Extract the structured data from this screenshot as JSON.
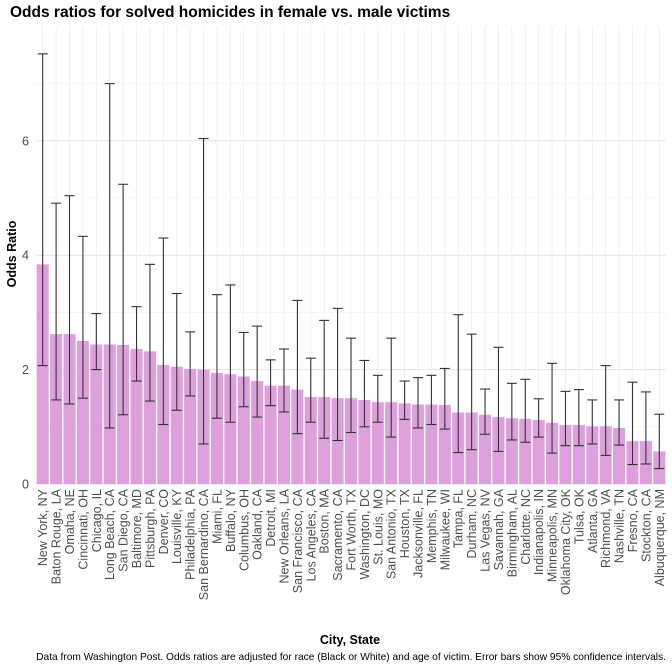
{
  "chart_data": {
    "type": "bar",
    "title": "Odds ratios for solved homicides in female vs. male victims",
    "xlabel": "City, State",
    "ylabel": "Odds Ratio",
    "caption": "Data from Washington Post. Odds ratios are adjusted for race (Black or White) and age of victim. Error bars show 95% confidence intervals.",
    "ylim": [
      0,
      7.5
    ],
    "yticks": [
      0,
      2,
      4,
      6
    ],
    "grid": true,
    "bar_color": "#dda0dd",
    "errorbar_color": "#333333",
    "categories": [
      "New York, NY",
      "Baton Rouge, LA",
      "Omaha, NE",
      "Cincinnati, OH",
      "Chicago, IL",
      "Long Beach, CA",
      "San Diego, CA",
      "Baltimore, MD",
      "Pittsburgh, PA",
      "Denver, CO",
      "Louisville, KY",
      "Philadelphia, PA",
      "San Bernardino, CA",
      "Miami, FL",
      "Buffalo, NY",
      "Columbus, OH",
      "Oakland, CA",
      "Detroit, MI",
      "New Orleans, LA",
      "San Francisco, CA",
      "Los Angeles, CA",
      "Boston, MA",
      "Sacramento, CA",
      "Fort Worth, TX",
      "Washington, DC",
      "St. Louis, MO",
      "San Antonio, TX",
      "Houston, TX",
      "Jacksonville, FL",
      "Memphis, TN",
      "Milwaukee, WI",
      "Tampa, FL",
      "Durham, NC",
      "Las Vegas, NV",
      "Savannah, GA",
      "Birmingham, AL",
      "Charlotte, NC",
      "Indianapolis, IN",
      "Minneapolis, MN",
      "Oklahoma City, OK",
      "Tulsa, OK",
      "Atlanta, GA",
      "Richmond, VA",
      "Nashville, TN",
      "Fresno, CA",
      "Stockton, CA",
      "Albuquerque, NM"
    ],
    "values": [
      3.84,
      2.62,
      2.62,
      2.5,
      2.44,
      2.44,
      2.43,
      2.36,
      2.32,
      2.08,
      2.05,
      2.01,
      2.0,
      1.94,
      1.92,
      1.88,
      1.8,
      1.72,
      1.72,
      1.65,
      1.52,
      1.52,
      1.5,
      1.5,
      1.47,
      1.43,
      1.43,
      1.41,
      1.39,
      1.39,
      1.38,
      1.25,
      1.25,
      1.21,
      1.17,
      1.15,
      1.14,
      1.12,
      1.07,
      1.03,
      1.03,
      1.01,
      1.01,
      0.98,
      0.75,
      0.75,
      0.57
    ],
    "lower": [
      2.07,
      1.47,
      1.4,
      1.5,
      2.0,
      0.98,
      1.21,
      1.8,
      1.45,
      1.04,
      1.29,
      1.54,
      0.7,
      1.15,
      1.08,
      1.35,
      1.17,
      1.37,
      1.26,
      0.88,
      1.08,
      0.8,
      0.76,
      0.9,
      1.0,
      1.08,
      0.82,
      1.13,
      0.98,
      1.04,
      0.96,
      0.55,
      0.6,
      0.87,
      0.57,
      0.77,
      0.73,
      0.82,
      0.54,
      0.67,
      0.67,
      0.7,
      0.5,
      0.68,
      0.34,
      0.35,
      0.27
    ],
    "upper": [
      7.52,
      4.91,
      5.04,
      4.33,
      2.98,
      7.0,
      5.24,
      3.1,
      3.84,
      4.3,
      3.33,
      2.66,
      6.04,
      3.31,
      3.48,
      2.65,
      2.76,
      2.17,
      2.36,
      3.21,
      2.2,
      2.86,
      3.07,
      2.55,
      2.16,
      1.9,
      2.55,
      1.8,
      1.86,
      1.9,
      2.02,
      2.96,
      2.62,
      1.66,
      2.39,
      1.76,
      1.83,
      1.49,
      2.11,
      1.62,
      1.65,
      1.47,
      2.07,
      1.47,
      1.78,
      1.61,
      1.22
    ]
  }
}
